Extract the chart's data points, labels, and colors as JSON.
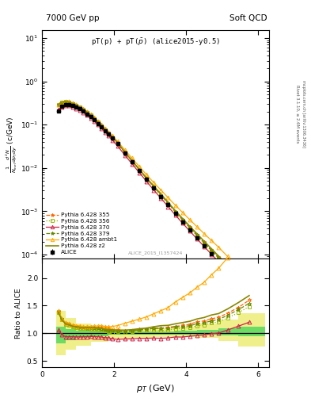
{
  "title_left": "7000 GeV pp",
  "title_right": "Soft QCD",
  "subplot_title": "pT(p) + pT($\\bar{p}$) (alice2015-y0.5)",
  "watermark": "ALICE_2015_I1357424",
  "right_label_top": "Rivet 3.1.10, ≥ 2.6M events",
  "right_label_bottom": "mcplots.cern.ch [arXiv:1306.3436]",
  "xlabel": "$p_T$ (GeV)",
  "ylabel": "$\\frac{1}{N_{inel}}\\frac{d^2N}{dp_{T}dy}$ (c/GeV)",
  "ylabel_ratio": "Ratio to ALICE",
  "xlim": [
    0.0,
    6.3
  ],
  "ylim_log": [
    8e-05,
    15
  ],
  "ylim_ratio": [
    0.38,
    2.35
  ],
  "ratio_yticks": [
    0.5,
    1.0,
    1.5,
    2.0
  ],
  "alice_x": [
    0.45,
    0.55,
    0.65,
    0.75,
    0.85,
    0.95,
    1.05,
    1.15,
    1.25,
    1.35,
    1.45,
    1.55,
    1.65,
    1.75,
    1.85,
    1.95,
    2.1,
    2.3,
    2.5,
    2.7,
    2.9,
    3.1,
    3.3,
    3.5,
    3.7,
    3.9,
    4.1,
    4.3,
    4.5,
    4.7,
    4.9,
    5.15,
    5.45,
    5.75
  ],
  "alice_y": [
    0.21,
    0.265,
    0.29,
    0.29,
    0.275,
    0.255,
    0.23,
    0.205,
    0.178,
    0.152,
    0.128,
    0.107,
    0.088,
    0.073,
    0.06,
    0.049,
    0.036,
    0.022,
    0.0138,
    0.0086,
    0.0054,
    0.0034,
    0.0022,
    0.0014,
    0.00088,
    0.00057,
    0.00037,
    0.00024,
    0.000158,
    0.000103,
    6.8e-05,
    3.8e-05,
    1.8e-05,
    8.5e-06
  ],
  "alice_yerr": [
    0.012,
    0.013,
    0.013,
    0.013,
    0.012,
    0.011,
    0.01,
    0.009,
    0.008,
    0.007,
    0.006,
    0.005,
    0.004,
    0.003,
    0.003,
    0.002,
    0.0015,
    0.001,
    0.0006,
    0.0004,
    0.00025,
    0.00015,
    0.0001,
    7e-05,
    4e-05,
    3e-05,
    2e-05,
    1.3e-05,
    8.5e-06,
    5.6e-06,
    3.7e-06,
    2.1e-06,
    1e-06,
    4.8e-07
  ],
  "p355_x": [
    0.45,
    0.55,
    0.65,
    0.75,
    0.85,
    0.95,
    1.05,
    1.15,
    1.25,
    1.35,
    1.45,
    1.55,
    1.65,
    1.75,
    1.85,
    1.95,
    2.1,
    2.3,
    2.5,
    2.7,
    2.9,
    3.1,
    3.3,
    3.5,
    3.7,
    3.9,
    4.1,
    4.3,
    4.5,
    4.7,
    4.9,
    5.15,
    5.45,
    5.75
  ],
  "p355_y": [
    0.295,
    0.335,
    0.345,
    0.34,
    0.315,
    0.29,
    0.258,
    0.228,
    0.198,
    0.169,
    0.142,
    0.118,
    0.097,
    0.079,
    0.065,
    0.052,
    0.038,
    0.023,
    0.0145,
    0.0092,
    0.0058,
    0.0037,
    0.0024,
    0.00155,
    0.00099,
    0.00065,
    0.00043,
    0.00029,
    0.000193,
    0.00013,
    8.75e-05,
    5.18e-05,
    2.64e-05,
    1.36e-05
  ],
  "p356_x": [
    0.45,
    0.55,
    0.65,
    0.75,
    0.85,
    0.95,
    1.05,
    1.15,
    1.25,
    1.35,
    1.45,
    1.55,
    1.65,
    1.75,
    1.85,
    1.95,
    2.1,
    2.3,
    2.5,
    2.7,
    2.9,
    3.1,
    3.3,
    3.5,
    3.7,
    3.9,
    4.1,
    4.3,
    4.5,
    4.7,
    4.9,
    5.15,
    5.45,
    5.75
  ],
  "p356_y": [
    0.29,
    0.33,
    0.338,
    0.333,
    0.308,
    0.283,
    0.252,
    0.222,
    0.193,
    0.164,
    0.138,
    0.114,
    0.093,
    0.076,
    0.062,
    0.05,
    0.037,
    0.0225,
    0.0142,
    0.009,
    0.0057,
    0.0036,
    0.0023,
    0.00148,
    0.00095,
    0.00062,
    0.00041,
    0.000272,
    0.000182,
    0.000122,
    8.2e-05,
    4.85e-05,
    2.47e-05,
    1.26e-05
  ],
  "p370_x": [
    0.45,
    0.55,
    0.65,
    0.75,
    0.85,
    0.95,
    1.05,
    1.15,
    1.25,
    1.35,
    1.45,
    1.55,
    1.65,
    1.75,
    1.85,
    1.95,
    2.1,
    2.3,
    2.5,
    2.7,
    2.9,
    3.1,
    3.3,
    3.5,
    3.7,
    3.9,
    4.1,
    4.3,
    4.5,
    4.7,
    4.9,
    5.15,
    5.45,
    5.75
  ],
  "p370_y": [
    0.222,
    0.258,
    0.272,
    0.272,
    0.258,
    0.238,
    0.215,
    0.192,
    0.167,
    0.143,
    0.12,
    0.1,
    0.082,
    0.067,
    0.055,
    0.044,
    0.032,
    0.0197,
    0.0124,
    0.0078,
    0.0049,
    0.0031,
    0.002,
    0.00128,
    0.00082,
    0.00053,
    0.00035,
    0.00023,
    0.000153,
    0.000102,
    6.82e-05,
    4.02e-05,
    2.03e-05,
    1.02e-05
  ],
  "p379_x": [
    0.45,
    0.55,
    0.65,
    0.75,
    0.85,
    0.95,
    1.05,
    1.15,
    1.25,
    1.35,
    1.45,
    1.55,
    1.65,
    1.75,
    1.85,
    1.95,
    2.1,
    2.3,
    2.5,
    2.7,
    2.9,
    3.1,
    3.3,
    3.5,
    3.7,
    3.9,
    4.1,
    4.3,
    4.5,
    4.7,
    4.9,
    5.15,
    5.45,
    5.75
  ],
  "p379_y": [
    0.293,
    0.333,
    0.342,
    0.337,
    0.312,
    0.286,
    0.255,
    0.225,
    0.195,
    0.166,
    0.14,
    0.116,
    0.095,
    0.077,
    0.063,
    0.051,
    0.037,
    0.0228,
    0.0144,
    0.0091,
    0.0058,
    0.0037,
    0.0024,
    0.00153,
    0.00098,
    0.00064,
    0.00042,
    0.000281,
    0.000188,
    0.000126,
    8.5e-05,
    5.03e-05,
    2.57e-05,
    1.31e-05
  ],
  "pambt1_x": [
    0.45,
    0.55,
    0.65,
    0.75,
    0.85,
    0.95,
    1.05,
    1.15,
    1.25,
    1.35,
    1.45,
    1.55,
    1.65,
    1.75,
    1.85,
    1.95,
    2.1,
    2.3,
    2.5,
    2.7,
    2.9,
    3.1,
    3.3,
    3.5,
    3.7,
    3.9,
    4.1,
    4.3,
    4.5,
    4.7,
    4.9,
    5.15,
    5.45,
    5.75
  ],
  "pambt1_y": [
    0.295,
    0.335,
    0.345,
    0.34,
    0.315,
    0.29,
    0.26,
    0.23,
    0.2,
    0.171,
    0.145,
    0.121,
    0.1,
    0.082,
    0.067,
    0.055,
    0.041,
    0.026,
    0.0168,
    0.0108,
    0.007,
    0.0046,
    0.0031,
    0.00205,
    0.00138,
    0.00094,
    0.00064,
    0.00044,
    0.000304,
    0.000212,
    0.000148,
    9e-05,
    4.8e-05,
    2.58e-05
  ],
  "pz2_x": [
    0.45,
    0.55,
    0.65,
    0.75,
    0.85,
    0.95,
    1.05,
    1.15,
    1.25,
    1.35,
    1.45,
    1.55,
    1.65,
    1.75,
    1.85,
    1.95,
    2.1,
    2.3,
    2.5,
    2.7,
    2.9,
    3.1,
    3.3,
    3.5,
    3.7,
    3.9,
    4.1,
    4.3,
    4.5,
    4.7,
    4.9,
    5.15,
    5.45,
    5.75
  ],
  "pz2_y": [
    0.29,
    0.33,
    0.34,
    0.335,
    0.31,
    0.285,
    0.255,
    0.225,
    0.196,
    0.167,
    0.141,
    0.117,
    0.096,
    0.078,
    0.064,
    0.052,
    0.038,
    0.0232,
    0.0147,
    0.0093,
    0.0059,
    0.0038,
    0.0025,
    0.0016,
    0.00103,
    0.00068,
    0.00045,
    0.000302,
    0.000203,
    0.000137,
    9.22e-05,
    5.47e-05,
    2.8e-05,
    1.43e-05
  ],
  "colors": {
    "alice": "#000000",
    "p355": "#ff6600",
    "p356": "#99bb00",
    "p370": "#cc2244",
    "p379": "#668800",
    "pambt1": "#ffaa00",
    "pz2": "#888800"
  },
  "band_green_inner_color": "#00cc44",
  "band_green_inner_alpha": 0.55,
  "band_yellow_outer_color": "#dddd00",
  "band_yellow_outer_alpha": 0.45,
  "band_x": [
    0.4,
    0.65,
    0.95,
    1.35,
    1.85,
    2.5,
    3.1,
    3.7,
    4.3,
    4.9,
    5.45,
    6.2
  ],
  "band_inner_low": [
    0.82,
    0.88,
    0.92,
    0.95,
    0.97,
    0.97,
    0.98,
    0.98,
    0.97,
    0.96,
    0.94,
    0.92
  ],
  "band_inner_high": [
    1.12,
    1.08,
    1.05,
    1.04,
    1.03,
    1.03,
    1.03,
    1.04,
    1.06,
    1.09,
    1.12,
    1.15
  ],
  "band_outer_low": [
    0.6,
    0.7,
    0.78,
    0.84,
    0.9,
    0.92,
    0.93,
    0.93,
    0.91,
    0.86,
    0.76,
    0.6
  ],
  "band_outer_high": [
    1.4,
    1.28,
    1.18,
    1.12,
    1.08,
    1.08,
    1.09,
    1.12,
    1.17,
    1.25,
    1.36,
    1.55
  ]
}
